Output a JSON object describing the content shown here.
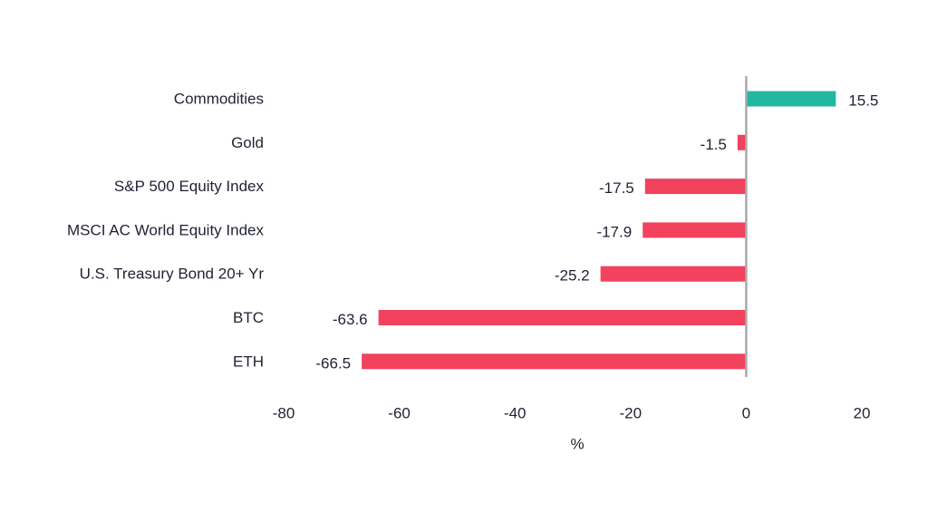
{
  "chart_data": {
    "type": "bar",
    "orientation": "horizontal",
    "categories": [
      "Commodities",
      "Gold",
      "S&P 500 Equity Index",
      "MSCI AC World Equity Index",
      "U.S. Treasury Bond 20+ Yr",
      "BTC",
      "ETH"
    ],
    "values": [
      15.5,
      -1.5,
      -17.5,
      -17.9,
      -25.2,
      -63.6,
      -66.5
    ],
    "value_labels": [
      "15.5",
      "-1.5",
      "-17.5",
      "-17.9",
      "-25.2",
      "-63.6",
      "-66.5"
    ],
    "xlabel": "%",
    "xlim": [
      -80,
      20
    ],
    "xticks": [
      -80,
      -60,
      -40,
      -20,
      0,
      20
    ],
    "grid": false,
    "colors": {
      "positive": "#20b8a0",
      "negative": "#f2425e",
      "zero_line": "#a9a9a9"
    }
  }
}
